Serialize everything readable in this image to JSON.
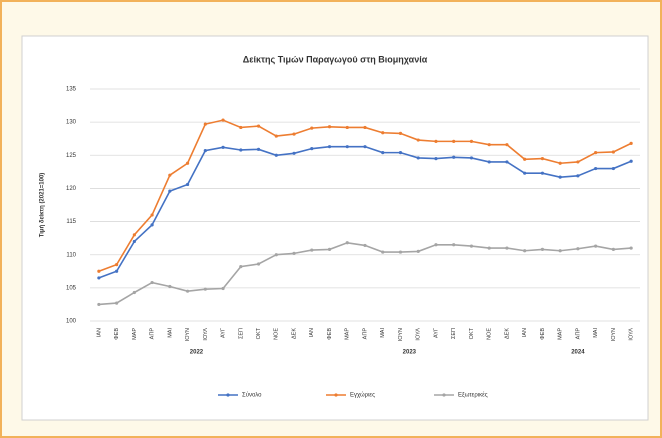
{
  "chart_data": {
    "type": "line",
    "title": "Δείκτης Τιμών Παραγωγού στη Βιομηχανία",
    "y_label": "Τιμή δείκτη (2021=100)",
    "categories": [
      "ΙΑΝ",
      "ΦΕΒ",
      "ΜΑΡ",
      "ΑΠΡ",
      "ΜΑΙ",
      "ΙΟΥΝ",
      "ΙΟΥΛ",
      "ΑΥΓ",
      "ΣΕΠ",
      "ΟΚΤ",
      "ΝΟΕ",
      "ΔΕΚ",
      "ΙΑΝ",
      "ΦΕΒ",
      "ΜΑΡ",
      "ΑΠΡ",
      "ΜΑΙ",
      "ΙΟΥΝ",
      "ΙΟΥΛ",
      "ΑΥΓ",
      "ΣΕΠ",
      "ΟΚΤ",
      "ΝΟΕ",
      "ΔΕΚ",
      "ΙΑΝ",
      "ΦΕΒ",
      "ΜΑΡ",
      "ΑΠΡ",
      "ΜΑΙ",
      "ΙΟΥΝ",
      "ΙΟΥΛ"
    ],
    "years": [
      "2022",
      "2023",
      "2024"
    ],
    "series": [
      {
        "name": "Σύνολο",
        "color": "#4472c4",
        "values": [
          106.5,
          107.5,
          112,
          114.5,
          119.6,
          120.6,
          125.7,
          126.2,
          125.8,
          125.9,
          125,
          125.3,
          126,
          126.3,
          126.3,
          126.3,
          125.4,
          125.4,
          124.6,
          124.5,
          124.7,
          124.6,
          124,
          124,
          122.3,
          122.3,
          121.7,
          121.9,
          123,
          123,
          124.1
        ]
      },
      {
        "name": "Εγχώριες",
        "color": "#ed7d31",
        "values": [
          107.5,
          108.5,
          113,
          116,
          122,
          123.8,
          129.7,
          130.3,
          129.2,
          129.4,
          127.9,
          128.2,
          129.1,
          129.3,
          129.2,
          129.2,
          128.4,
          128.3,
          127.3,
          127.1,
          127.1,
          127.1,
          126.6,
          126.6,
          124.4,
          124.5,
          123.8,
          124,
          125.4,
          125.5,
          126.8
        ]
      },
      {
        "name": "Εξωτερικές",
        "color": "#a5a5a5",
        "values": [
          102.5,
          102.7,
          104.3,
          105.8,
          105.2,
          104.5,
          104.8,
          104.9,
          108.2,
          108.6,
          110,
          110.2,
          110.7,
          110.8,
          111.8,
          111.4,
          110.4,
          110.4,
          110.5,
          111.5,
          111.5,
          111.3,
          111,
          111,
          110.6,
          110.8,
          110.6,
          110.9,
          111.3,
          110.8,
          111
        ]
      }
    ],
    "ylim": [
      100,
      135
    ],
    "yticks": [
      100,
      105,
      110,
      115,
      120,
      125,
      130,
      135
    ],
    "grid": true,
    "legend": "bottom"
  }
}
